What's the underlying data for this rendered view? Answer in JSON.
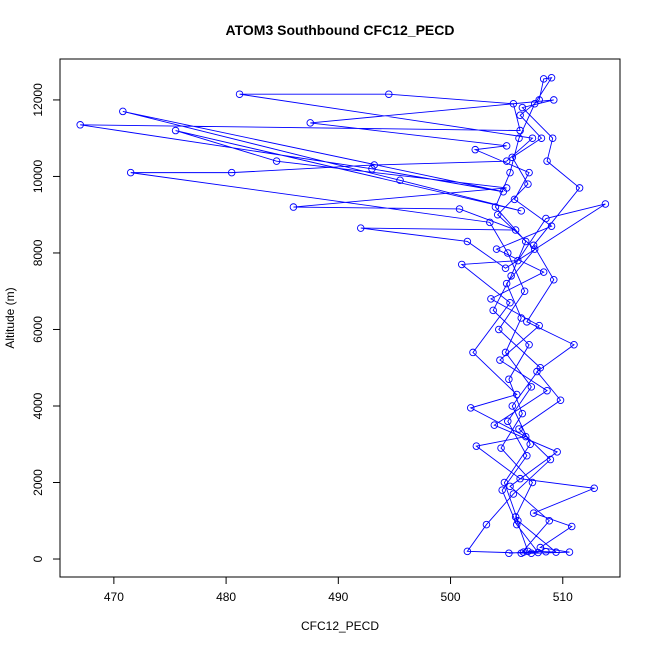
{
  "chart_data": {
    "type": "scatter",
    "line": true,
    "title": "ATOM3 Southbound CFC12_PECD",
    "xlabel": "CFC12_PECD",
    "ylabel": "Altitude (m)",
    "color": "#0000ff",
    "xlim": [
      465.2,
      515.1
    ],
    "ylim": [
      -470,
      13070
    ],
    "xticks": [
      470,
      480,
      490,
      500,
      510
    ],
    "yticks": [
      0,
      2000,
      4000,
      6000,
      8000,
      10000,
      12000
    ],
    "x": [
      505.2,
      506.5,
      507.8,
      505.9,
      504.6,
      506.8,
      505.1,
      507.2,
      504.9,
      506.3,
      505.0,
      507.5,
      504.2,
      506.9,
      505.5,
      508.1,
      506.2,
      507.9,
      508.3,
      509.0,
      507.5,
      506.1,
      505.3,
      504.0,
      506.7,
      505.4,
      503.8,
      507.0,
      505.2,
      506.4,
      504.5,
      507.3,
      505.8,
      506.9,
      508.5,
      509.4,
      506.0,
      504.8,
      507.1,
      505.5,
      508.0,
      504.3,
      506.6,
      505.1,
      503.5,
      471.5,
      480.5,
      493.2,
      505.0,
      507.3,
      481.2,
      494.5,
      505.6,
      506.2,
      467.0,
      493.0,
      504.7,
      470.8,
      495.5,
      506.3,
      475.5,
      484.5,
      505.0,
      486.0,
      500.8,
      505.8,
      492.0,
      501.5,
      504.9,
      513.8,
      508.5,
      506.0,
      501.0,
      505.3,
      502.0,
      505.9,
      501.8,
      506.7,
      502.3,
      506.2,
      512.8,
      507.4,
      510.8,
      508.0,
      510.6,
      507.2,
      501.5,
      503.2,
      505.6,
      508.9,
      506.1,
      509.8,
      507.7,
      511.0,
      506.8,
      509.2,
      507.4,
      511.5,
      508.6,
      509.1,
      506.4,
      509.2,
      487.5,
      505.0,
      502.2,
      507.0,
      505.7,
      509.0,
      504.1,
      508.3,
      503.6,
      507.9,
      504.4,
      508.6,
      503.9,
      509.5,
      505.3,
      508.8,
      506.3
    ],
    "values": [
      150,
      180,
      170,
      900,
      1800,
      2700,
      3600,
      4500,
      5400,
      6300,
      7200,
      8100,
      9000,
      9800,
      10500,
      11000,
      11600,
      12000,
      12550,
      12580,
      11900,
      11000,
      10100,
      9200,
      8300,
      7400,
      6500,
      5600,
      4700,
      3800,
      2900,
      2000,
      1100,
      200,
      190,
      180,
      1000,
      2000,
      3000,
      4000,
      5000,
      6000,
      7000,
      8000,
      8800,
      10100,
      10100,
      10300,
      10400,
      11000,
      12150,
      12150,
      11900,
      11200,
      11350,
      10200,
      9600,
      11700,
      9900,
      9100,
      11200,
      10400,
      9700,
      9200,
      9150,
      8600,
      8650,
      8300,
      7600,
      9280,
      8900,
      7800,
      7700,
      6700,
      5400,
      4300,
      3950,
      3200,
      2950,
      2100,
      1850,
      1200,
      850,
      300,
      180,
      150,
      200,
      900,
      1700,
      2600,
      3400,
      4150,
      4900,
      5600,
      6200,
      7300,
      8200,
      9700,
      10400,
      11000,
      11800,
      12000,
      11400,
      10800,
      10700,
      10100,
      9400,
      8700,
      8100,
      7500,
      6800,
      6100,
      5200,
      4400,
      3500,
      2800,
      1900,
      1000,
      150
    ]
  }
}
